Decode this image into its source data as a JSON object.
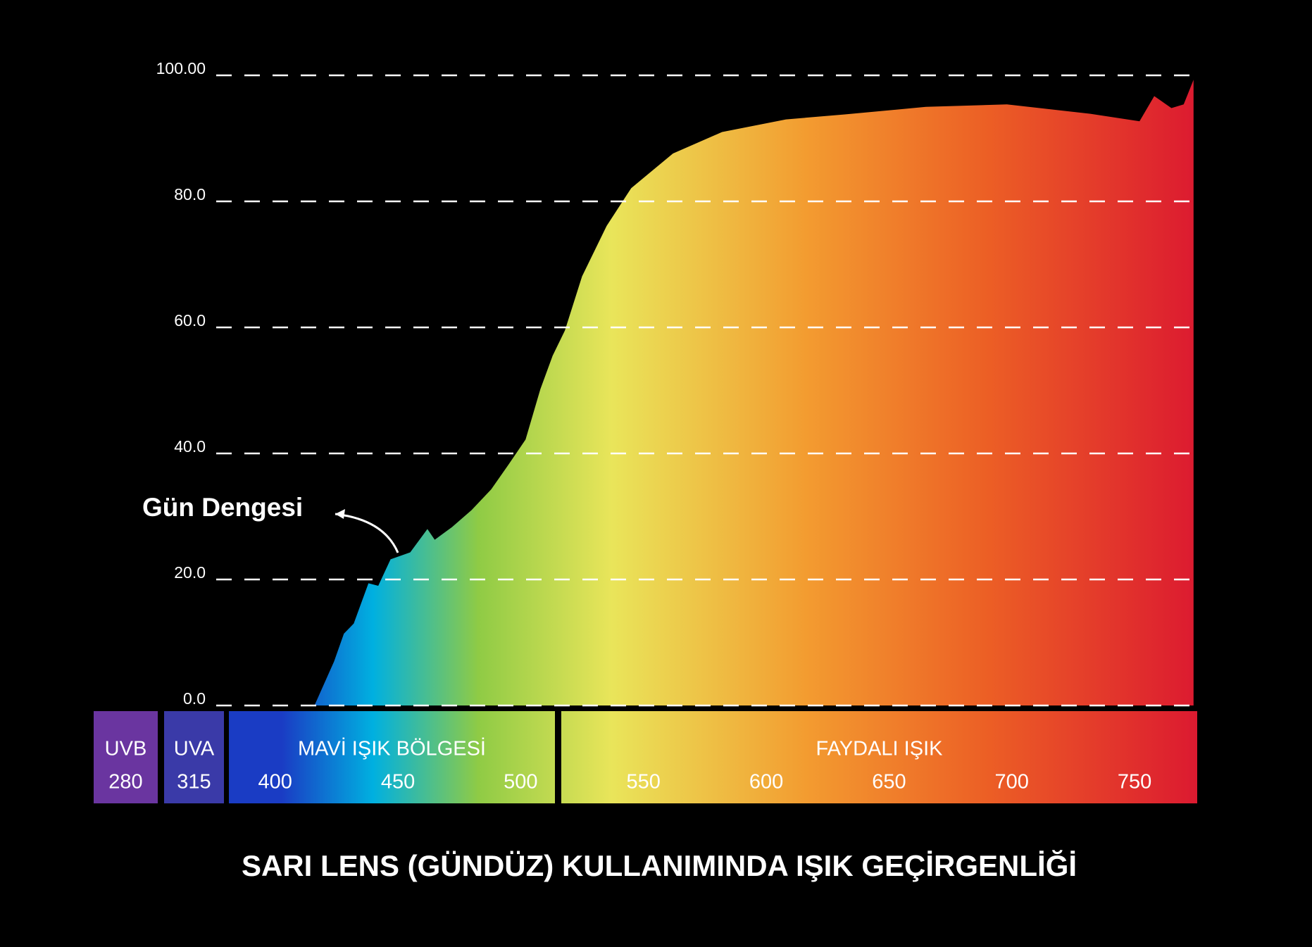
{
  "chart_data": {
    "type": "area",
    "title": "SARI LENS (GÜNDÜZ) KULLANIMINDA IŞIK GEÇİRGENLİĞİ",
    "annotation": "Gün Dengesi",
    "x": [
      416,
      424,
      428,
      432,
      438,
      442,
      447,
      455,
      462,
      465,
      472,
      480,
      488,
      495,
      502,
      508,
      513,
      518,
      525,
      535,
      545,
      562,
      582,
      608,
      632,
      665,
      698,
      732,
      752,
      758,
      765,
      770,
      774
    ],
    "values": [
      0,
      7,
      11.4,
      13,
      19.4,
      19,
      23.2,
      24.3,
      28,
      26.3,
      28.3,
      31,
      34.3,
      38.2,
      42.2,
      50.2,
      55.5,
      59.5,
      68.1,
      76.1,
      82.1,
      87.6,
      91,
      93,
      93.8,
      95,
      95.4,
      93.9,
      92.7,
      96.7,
      94.8,
      95.4,
      99.3
    ],
    "gradient": [
      "#1a3cc4",
      "#00b0e0",
      "#8fcb45",
      "#e9e55a",
      "#f39b30",
      "#ec5f25",
      "#dc1a30"
    ],
    "xlim": [
      376,
      775.5
    ],
    "xticks": [
      400,
      450,
      500,
      550,
      600,
      650,
      700,
      750
    ],
    "ylim": [
      0,
      100
    ],
    "yticks": [
      {
        "value": 0,
        "label": "0.0"
      },
      {
        "value": 20,
        "label": "20.0"
      },
      {
        "value": 40,
        "label": "40.0"
      },
      {
        "value": 60,
        "label": "60.0"
      },
      {
        "value": 80,
        "label": "80.0"
      },
      {
        "value": 100,
        "label": "100.00"
      }
    ],
    "grid": true,
    "bands": [
      {
        "name": "UVB",
        "wavelength": 280,
        "color": "#6a35a0"
      },
      {
        "name": "UVA",
        "wavelength": 315,
        "color": "#3a3aa8"
      },
      {
        "name": "MAVİ IŞIK BÖLGESİ"
      },
      {
        "name": "FAYDALI IŞIK"
      }
    ]
  }
}
